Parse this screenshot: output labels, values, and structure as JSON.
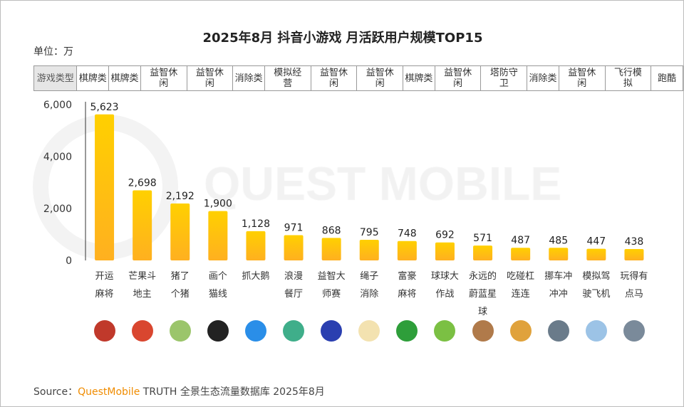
{
  "title": "2025年8月 抖音小游戏 月活跃用户规模TOP15",
  "unit_label": "单位：万",
  "category_header": "游戏类型",
  "categories_type": [
    "棋牌类",
    "棋牌类",
    "益智休闲",
    "益智休闲",
    "消除类",
    "模拟经营",
    "益智休闲",
    "益智休闲",
    "棋牌类",
    "益智休闲",
    "塔防守卫",
    "消除类",
    "益智休闲",
    "飞行模拟",
    "跑酷"
  ],
  "watermark": "QUEST MOBILE",
  "chart_data": {
    "type": "bar",
    "title": "2025年8月 抖音小游戏 月活跃用户规模TOP15",
    "ylabel": "单位：万",
    "categories": [
      "开运麻将",
      "芒果斗地主",
      "猪了个猪",
      "画个猫线",
      "抓大鹅",
      "浪漫餐厅",
      "益智大师赛",
      "绳子消除",
      "富豪麻将",
      "球球大作战",
      "永远的蔚蓝星球",
      "吃碰杠连连",
      "挪车冲冲冲",
      "模拟驾驶飞机",
      "玩得有点马"
    ],
    "values": [
      5623,
      2698,
      2192,
      1900,
      1128,
      971,
      868,
      795,
      748,
      692,
      571,
      487,
      485,
      447,
      438
    ],
    "value_labels": [
      "5,623",
      "2,698",
      "2,192",
      "1,900",
      "1,128",
      "971",
      "868",
      "795",
      "748",
      "692",
      "571",
      "487",
      "485",
      "447",
      "438"
    ],
    "yticks": [
      "0",
      "2,000",
      "4,000",
      "6,000"
    ],
    "ytick_values": [
      0,
      2000,
      4000,
      6000
    ],
    "ylim": [
      0,
      6000
    ],
    "grid": false,
    "bar_color_top": "#ffd000",
    "bar_color_bottom": "#ffb020"
  },
  "icon_colors": [
    "#c0392b",
    "#d9462f",
    "#9bc56b",
    "#222222",
    "#2a8ee8",
    "#3fae8a",
    "#2a3fb0",
    "#f3e2b0",
    "#2e9e3a",
    "#7bc043",
    "#b07a4a",
    "#e0a23c",
    "#6a7b8a",
    "#9cc3e6",
    "#7a8a9a"
  ],
  "source": {
    "prefix": "Source：",
    "brand": "QuestMobile",
    "rest": " TRUTH 全景生态流量数据库 2025年8月"
  }
}
